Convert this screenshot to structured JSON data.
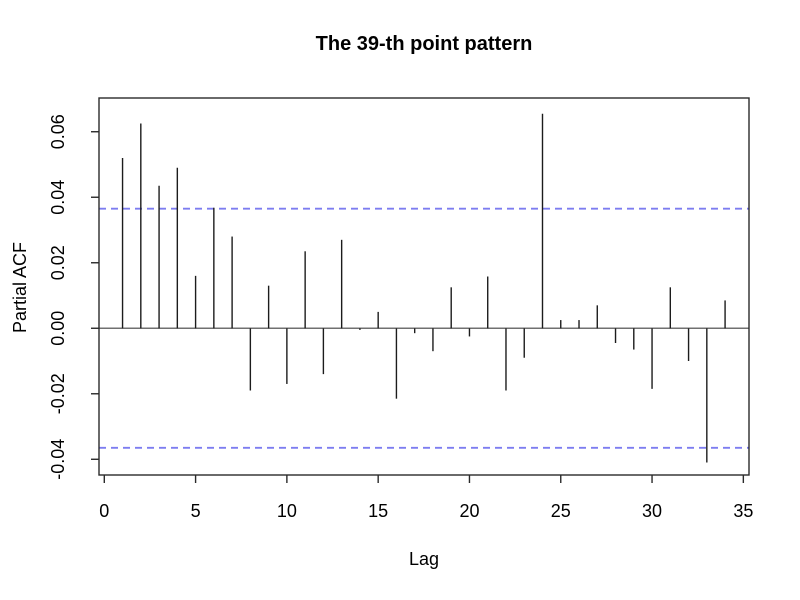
{
  "chart_data": {
    "type": "bar",
    "subtype": "stem-pacf",
    "title": "The 39-th point pattern",
    "xlabel": "Lag",
    "ylabel": "Partial ACF",
    "x": [
      1,
      2,
      3,
      4,
      5,
      6,
      7,
      8,
      9,
      10,
      11,
      12,
      13,
      14,
      15,
      16,
      17,
      18,
      19,
      20,
      21,
      22,
      23,
      24,
      25,
      26,
      27,
      28,
      29,
      30,
      31,
      32,
      33,
      34
    ],
    "values": [
      0.052,
      0.0625,
      0.0435,
      0.049,
      0.016,
      0.0368,
      0.028,
      -0.019,
      0.013,
      -0.017,
      0.0235,
      -0.014,
      0.027,
      -0.0005,
      0.005,
      -0.0215,
      -0.0015,
      -0.007,
      0.0125,
      -0.0025,
      0.0158,
      -0.019,
      -0.009,
      0.0655,
      0.0025,
      0.0025,
      0.007,
      -0.0045,
      -0.0065,
      -0.0185,
      0.0125,
      -0.01,
      -0.041,
      0.0085
    ],
    "confidence_lines": [
      0.0365,
      -0.0365
    ],
    "confidence_line_style": "dashed",
    "xlim": [
      -0.29,
      35.31
    ],
    "ylim": [
      -0.0448,
      0.0703
    ],
    "xticks": {
      "values": [
        0,
        5,
        10,
        15,
        20,
        25,
        30,
        35
      ],
      "labels": [
        "0",
        "5",
        "10",
        "15",
        "20",
        "25",
        "30",
        "35"
      ]
    },
    "yticks": {
      "values": [
        -0.04,
        -0.02,
        0.0,
        0.02,
        0.04,
        0.06
      ],
      "labels": [
        "-0.04",
        "-0.02",
        "0.00",
        "0.02",
        "0.04",
        "0.06"
      ]
    },
    "grid": false,
    "zero_line": true,
    "colors": {
      "spike": "#1c1c1c",
      "axis": "#2a2a2a",
      "zero_line": "#707070",
      "confidence": "#7d7df0",
      "text": "#000000",
      "background": "#ffffff"
    }
  }
}
